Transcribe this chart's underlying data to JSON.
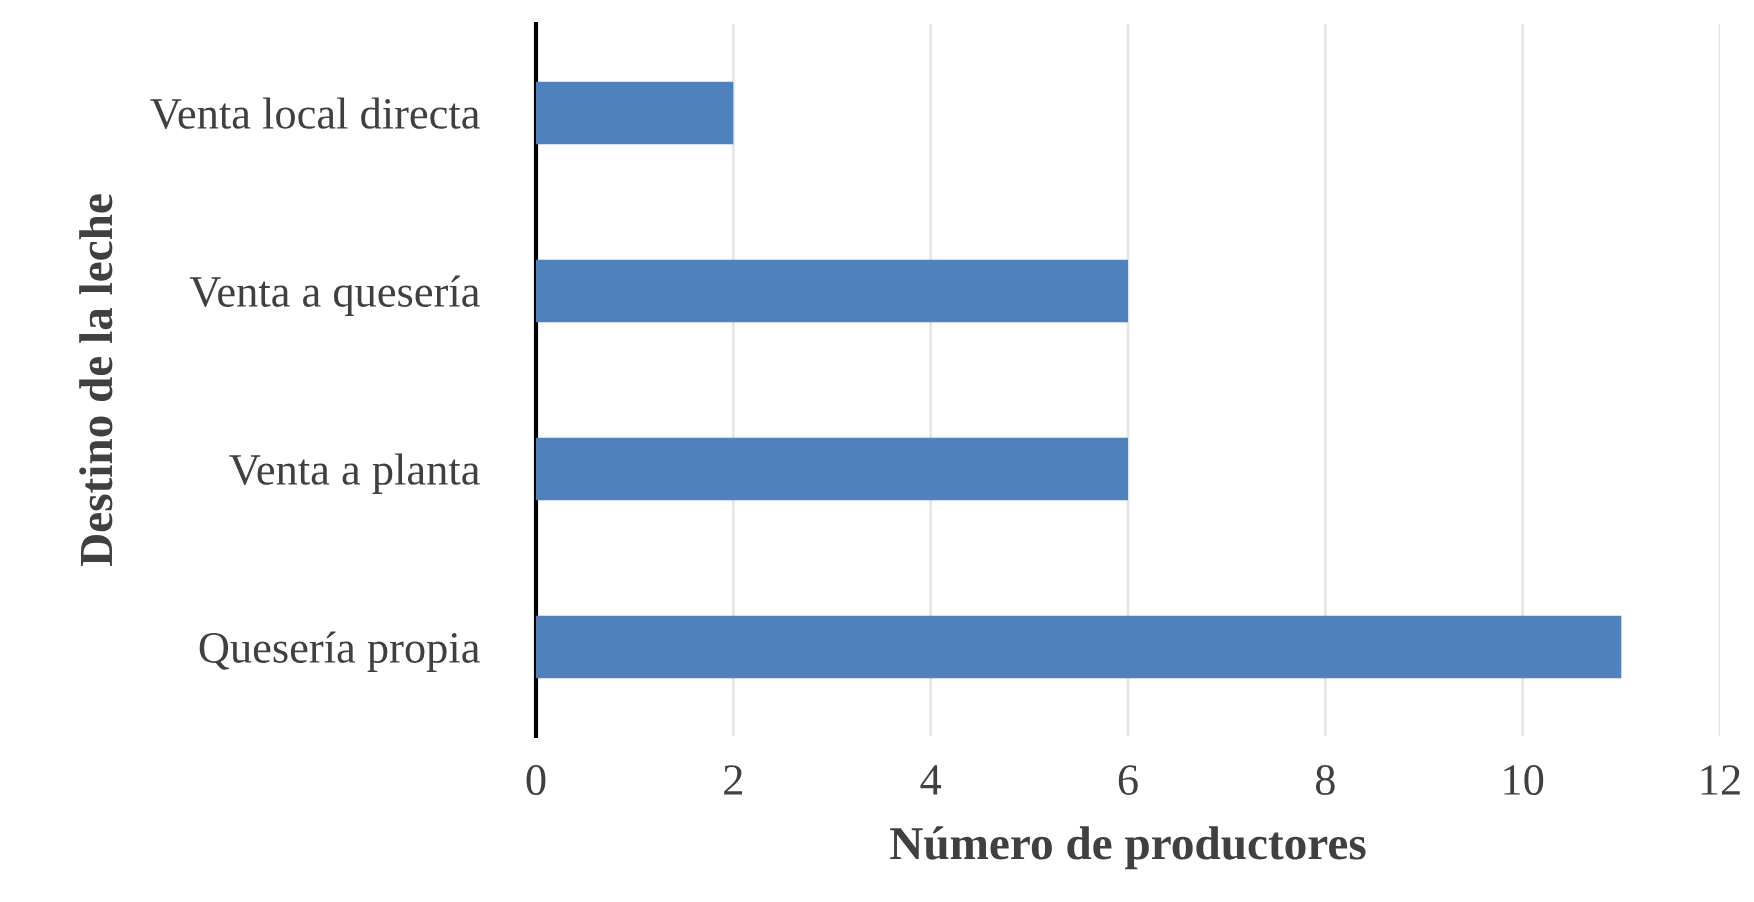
{
  "chart_data": {
    "type": "bar",
    "orientation": "horizontal",
    "xlabel": "Número de productores",
    "ylabel": "Destino de la leche",
    "categories": [
      "Venta local directa",
      "Venta a quesería",
      "Venta a planta",
      "Quesería propia"
    ],
    "values": [
      2,
      6,
      6,
      11
    ],
    "color": "#4f81bd",
    "xlim": [
      0,
      12
    ],
    "xticks": [
      0,
      2,
      4,
      6,
      8,
      10,
      12
    ],
    "grid": "x",
    "legend": false
  }
}
